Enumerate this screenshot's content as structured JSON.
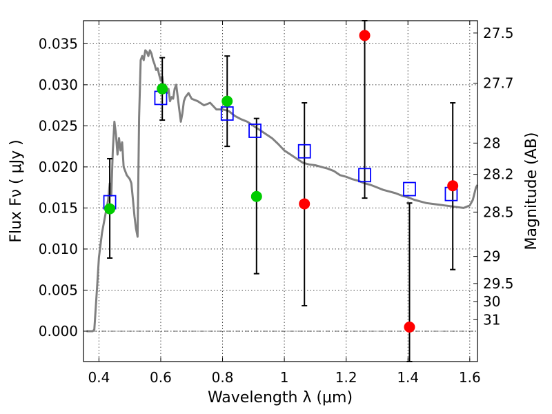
{
  "chart_data": {
    "type": "scatter",
    "title": "",
    "xlabel": "Wavelength  λ (μm)",
    "ylabel": "Flux  Fν  ( μJy )",
    "y2label": "Magnitude (AB)",
    "xlim": [
      0.35,
      1.625
    ],
    "ylim": [
      -0.0037,
      0.0378
    ],
    "grid": true,
    "x_ticks": [
      0.4,
      0.6,
      0.8,
      1.0,
      1.2,
      1.4,
      1.6
    ],
    "x_tick_labels": [
      "0.4",
      "0.6",
      "0.8",
      "1",
      "1.2",
      "1.4",
      "1.6"
    ],
    "y_ticks": [
      0.0,
      0.005,
      0.01,
      0.015,
      0.02,
      0.025,
      0.03,
      0.035
    ],
    "y_tick_labels": [
      "0.000",
      "0.005",
      "0.010",
      "0.015",
      "0.020",
      "0.025",
      "0.030",
      "0.035"
    ],
    "y2_ticks": [
      {
        "label": "27.5",
        "flux": 0.0363
      },
      {
        "label": "27.7",
        "flux": 0.0302
      },
      {
        "label": "28",
        "flux": 0.0229
      },
      {
        "label": "28.2",
        "flux": 0.0191
      },
      {
        "label": "28.5",
        "flux": 0.0145
      },
      {
        "label": "29",
        "flux": 0.0091
      },
      {
        "label": "29.5",
        "flux": 0.0058
      },
      {
        "label": "30",
        "flux": 0.0036
      },
      {
        "label": "31",
        "flux": 0.0014
      }
    ],
    "series": [
      {
        "kind": "model-spectrum",
        "color": "#808080",
        "x": [
          0.36,
          0.38,
          0.385,
          0.39,
          0.395,
          0.4,
          0.41,
          0.42,
          0.43,
          0.435,
          0.44,
          0.445,
          0.45,
          0.455,
          0.46,
          0.465,
          0.47,
          0.475,
          0.48,
          0.49,
          0.5,
          0.505,
          0.51,
          0.515,
          0.52,
          0.525,
          0.53,
          0.535,
          0.54,
          0.545,
          0.55,
          0.555,
          0.56,
          0.565,
          0.57,
          0.575,
          0.58,
          0.585,
          0.59,
          0.595,
          0.6,
          0.605,
          0.61,
          0.615,
          0.62,
          0.625,
          0.63,
          0.635,
          0.64,
          0.645,
          0.65,
          0.655,
          0.66,
          0.665,
          0.67,
          0.675,
          0.68,
          0.69,
          0.7,
          0.72,
          0.74,
          0.76,
          0.78,
          0.8,
          0.82,
          0.84,
          0.86,
          0.88,
          0.9,
          0.92,
          0.94,
          0.96,
          0.98,
          1.0,
          1.02,
          1.04,
          1.06,
          1.08,
          1.1,
          1.12,
          1.14,
          1.16,
          1.18,
          1.2,
          1.22,
          1.24,
          1.26,
          1.28,
          1.3,
          1.32,
          1.34,
          1.36,
          1.38,
          1.4,
          1.42,
          1.44,
          1.46,
          1.48,
          1.5,
          1.52,
          1.54,
          1.56,
          1.58,
          1.6,
          1.61,
          1.62,
          1.625
        ],
        "y": [
          0.0,
          0.0,
          0.0002,
          0.003,
          0.006,
          0.009,
          0.012,
          0.014,
          0.016,
          0.018,
          0.0165,
          0.022,
          0.0255,
          0.024,
          0.0215,
          0.0235,
          0.022,
          0.023,
          0.02,
          0.019,
          0.0185,
          0.018,
          0.016,
          0.014,
          0.0125,
          0.0115,
          0.026,
          0.033,
          0.0335,
          0.033,
          0.0342,
          0.034,
          0.0335,
          0.0342,
          0.0338,
          0.033,
          0.0325,
          0.0318,
          0.032,
          0.0312,
          0.0305,
          0.031,
          0.0295,
          0.03,
          0.029,
          0.0295,
          0.028,
          0.0285,
          0.0283,
          0.0295,
          0.03,
          0.0285,
          0.027,
          0.0255,
          0.0265,
          0.028,
          0.0285,
          0.029,
          0.0283,
          0.028,
          0.0275,
          0.0278,
          0.027,
          0.027,
          0.0268,
          0.0262,
          0.0258,
          0.0255,
          0.025,
          0.0245,
          0.024,
          0.0235,
          0.0228,
          0.022,
          0.0215,
          0.021,
          0.0205,
          0.0203,
          0.0202,
          0.02,
          0.0198,
          0.0195,
          0.019,
          0.0188,
          0.0185,
          0.0183,
          0.018,
          0.0178,
          0.0175,
          0.0172,
          0.017,
          0.0168,
          0.0165,
          0.0163,
          0.016,
          0.0158,
          0.0156,
          0.0155,
          0.0154,
          0.0153,
          0.0152,
          0.0151,
          0.015,
          0.0153,
          0.016,
          0.0175,
          0.0178
        ]
      },
      {
        "kind": "model-photometry",
        "marker": "open-square",
        "color": "#0000ff",
        "x": [
          0.435,
          0.6,
          0.815,
          0.905,
          1.065,
          1.26,
          1.405,
          1.54
        ],
        "y": [
          0.0157,
          0.0284,
          0.0265,
          0.0244,
          0.0219,
          0.019,
          0.0173,
          0.0167
        ]
      },
      {
        "kind": "detections",
        "marker": "filled-circle",
        "color": "#00cc00",
        "x": [
          0.435,
          0.605,
          0.815,
          0.91
        ],
        "y": [
          0.0149,
          0.0295,
          0.028,
          0.0164
        ],
        "err_low": [
          0.0089,
          0.0257,
          0.0225,
          0.007
        ],
        "err_high": [
          0.021,
          0.0333,
          0.0335,
          0.0259
        ]
      },
      {
        "kind": "non-detections",
        "marker": "filled-circle",
        "color": "#ff0000",
        "x": [
          1.065,
          1.26,
          1.405,
          1.545
        ],
        "y": [
          0.0155,
          0.036,
          0.0005,
          0.0177
        ],
        "err_low": [
          0.0031,
          0.0162,
          -0.0037,
          0.0075
        ],
        "err_high": [
          0.0278,
          0.0378,
          0.0156,
          0.0278
        ]
      }
    ]
  }
}
